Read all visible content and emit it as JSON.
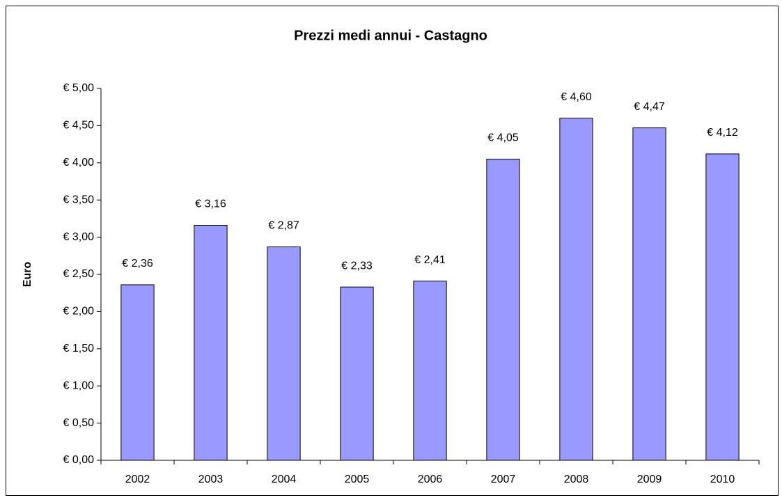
{
  "chart_data": {
    "type": "bar",
    "title": "Prezzi medi annui - Castagno",
    "y_label": "Euro",
    "categories": [
      "2002",
      "2003",
      "2004",
      "2005",
      "2006",
      "2007",
      "2008",
      "2009",
      "2010"
    ],
    "values": [
      2.36,
      3.16,
      2.87,
      2.33,
      2.41,
      4.05,
      4.6,
      4.47,
      4.12
    ],
    "value_labels": [
      "€ 2,36",
      "€ 3,16",
      "€ 2,87",
      "€ 2,33",
      "€ 2,41",
      "€ 4,05",
      "€ 4,60",
      "€ 4,47",
      "€ 4,12"
    ],
    "color": "#9999ff",
    "ylim": [
      0,
      5
    ],
    "yticks": [
      {
        "value": 0,
        "label": "€ 0,00"
      },
      {
        "value": 0.5,
        "label": "€ 0,50"
      },
      {
        "value": 1,
        "label": "€ 1,00"
      },
      {
        "value": 1.5,
        "label": "€ 1,50"
      },
      {
        "value": 2,
        "label": "€ 2,00"
      },
      {
        "value": 2.5,
        "label": "€ 2,50"
      },
      {
        "value": 3,
        "label": "€ 3,00"
      },
      {
        "value": 3.5,
        "label": "€ 3,50"
      },
      {
        "value": 4,
        "label": "€ 4,00"
      },
      {
        "value": 4.5,
        "label": "€ 4,50"
      },
      {
        "value": 5,
        "label": "€ 5,00"
      }
    ],
    "grid": false
  }
}
